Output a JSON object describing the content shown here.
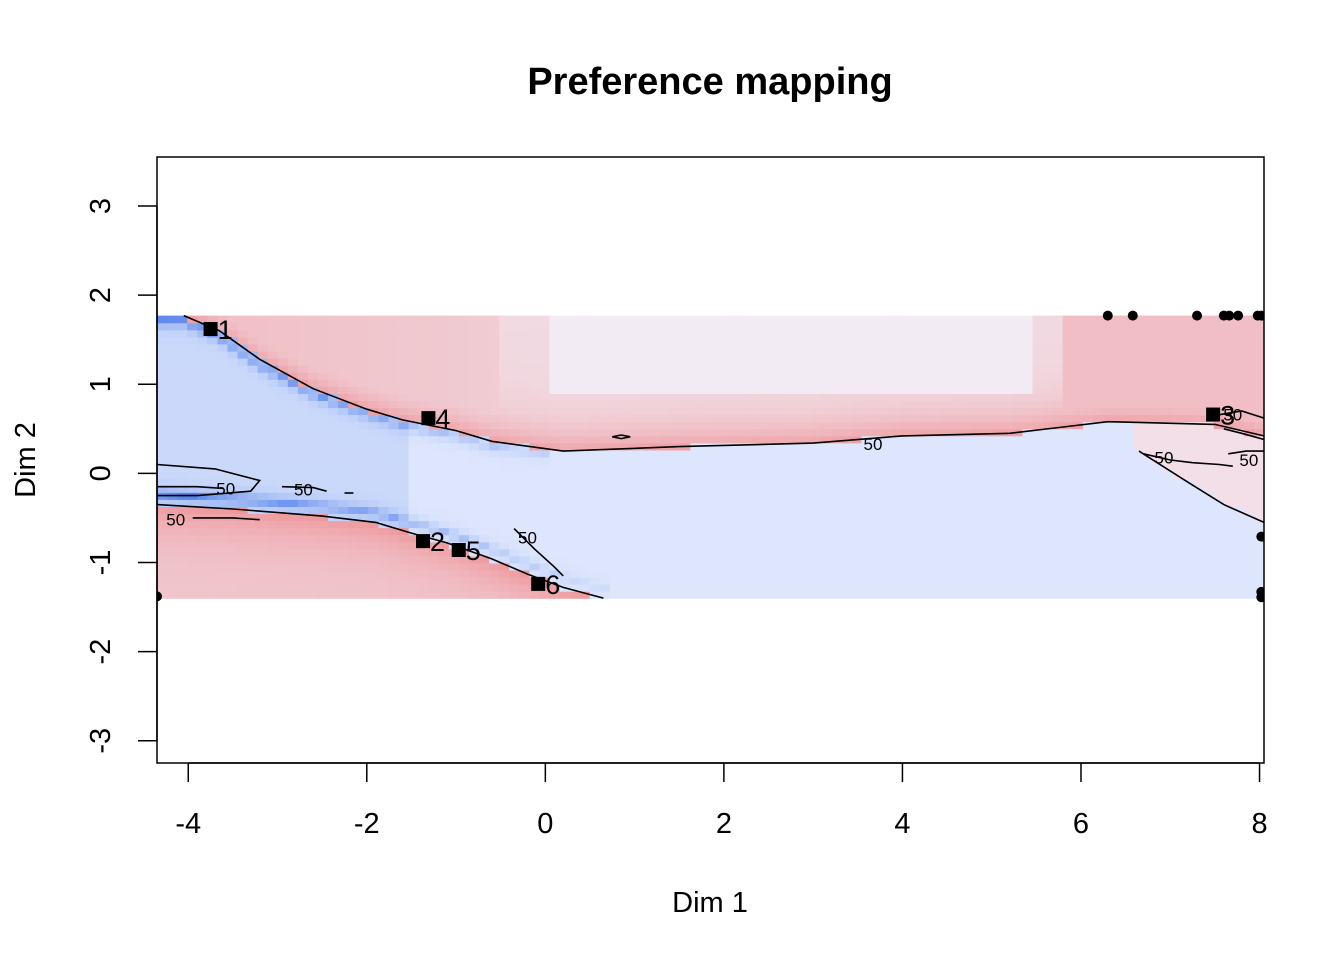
{
  "chart_data": {
    "type": "scatter",
    "title": "Preference mapping",
    "xlabel": "Dim 1",
    "ylabel": "Dim 2",
    "xlim": [
      -4.35,
      8.05
    ],
    "ylim": [
      -3.25,
      3.55
    ],
    "xticks": [
      "-4",
      "-2",
      "0",
      "2",
      "4",
      "6",
      "8"
    ],
    "yticks": [
      "-3",
      "-2",
      "-1",
      "0",
      "1",
      "2",
      "3"
    ],
    "grid": false,
    "legend": "none",
    "heatmap": {
      "x_range": [
        -4.35,
        8.05
      ],
      "y_range": [
        -1.4,
        1.77
      ],
      "scale": "blue (low) to red (high) around 50",
      "low_color": "#3b6fe8",
      "mid_color": "#f3f6ff",
      "high_color": "#e83a3a"
    },
    "contour_level_label": "50",
    "contour_labels": [
      {
        "x": -3.58,
        "y": -0.17
      },
      {
        "x": -2.71,
        "y": -0.18
      },
      {
        "x": -4.14,
        "y": -0.52
      },
      {
        "x": 3.67,
        "y": 0.33
      },
      {
        "x": 7.7,
        "y": 0.66
      },
      {
        "x": 6.93,
        "y": 0.18
      },
      {
        "x": 7.88,
        "y": 0.15
      },
      {
        "x": -0.2,
        "y": -0.72
      }
    ],
    "products": [
      {
        "label": "1",
        "x": -3.75,
        "y": 1.62
      },
      {
        "label": "2",
        "x": -1.37,
        "y": -0.76
      },
      {
        "label": "3",
        "x": 7.48,
        "y": 0.66
      },
      {
        "label": "4",
        "x": -1.31,
        "y": 0.62
      },
      {
        "label": "5",
        "x": -0.97,
        "y": -0.86
      },
      {
        "label": "6",
        "x": -0.08,
        "y": -1.24
      }
    ],
    "consumers": [
      {
        "x": 6.3,
        "y": 1.77
      },
      {
        "x": 6.58,
        "y": 1.77
      },
      {
        "x": 7.3,
        "y": 1.77
      },
      {
        "x": 7.6,
        "y": 1.77
      },
      {
        "x": 7.66,
        "y": 1.77
      },
      {
        "x": 7.76,
        "y": 1.77
      },
      {
        "x": 7.98,
        "y": 1.77
      },
      {
        "x": 8.02,
        "y": 1.77
      },
      {
        "x": 8.02,
        "y": -0.71
      },
      {
        "x": 8.02,
        "y": -1.33
      },
      {
        "x": 8.02,
        "y": -1.39
      },
      {
        "x": -4.35,
        "y": -1.38
      }
    ],
    "contours": [
      [
        [
          -4.05,
          1.77
        ],
        [
          -3.65,
          1.6
        ],
        [
          -3.2,
          1.28
        ],
        [
          -2.6,
          0.95
        ],
        [
          -2.0,
          0.72
        ],
        [
          -1.6,
          0.6
        ],
        [
          -1.0,
          0.48
        ],
        [
          -0.6,
          0.36
        ],
        [
          0.2,
          0.25
        ],
        [
          1.5,
          0.3
        ],
        [
          3.0,
          0.34
        ],
        [
          4.0,
          0.42
        ],
        [
          5.2,
          0.45
        ],
        [
          5.8,
          0.52
        ],
        [
          6.3,
          0.58
        ],
        [
          7.5,
          0.55
        ],
        [
          8.05,
          0.42
        ]
      ],
      [
        [
          -4.35,
          -0.35
        ],
        [
          -3.5,
          -0.4
        ],
        [
          -2.5,
          -0.48
        ],
        [
          -1.9,
          -0.55
        ],
        [
          -1.5,
          -0.67
        ],
        [
          -1.1,
          -0.78
        ],
        [
          -0.6,
          -0.96
        ],
        [
          -0.2,
          -1.13
        ],
        [
          0.2,
          -1.28
        ],
        [
          0.65,
          -1.4
        ]
      ],
      [
        [
          -4.35,
          0.1
        ],
        [
          -3.7,
          0.05
        ],
        [
          -3.2,
          -0.08
        ],
        [
          -3.3,
          -0.2
        ],
        [
          -3.9,
          -0.25
        ],
        [
          -4.35,
          -0.25
        ]
      ],
      [
        [
          -4.35,
          -0.15
        ],
        [
          -3.9,
          -0.15
        ],
        [
          -3.6,
          -0.17
        ]
      ],
      [
        [
          -2.95,
          -0.15
        ],
        [
          -2.6,
          -0.16
        ],
        [
          -2.45,
          -0.2
        ]
      ],
      [
        [
          -2.25,
          -0.22
        ],
        [
          -2.15,
          -0.22
        ]
      ],
      [
        [
          -3.95,
          -0.5
        ],
        [
          -3.5,
          -0.5
        ],
        [
          -3.2,
          -0.52
        ]
      ],
      [
        [
          -0.35,
          -0.62
        ],
        [
          -0.12,
          -0.85
        ],
        [
          0.1,
          -1.05
        ],
        [
          0.2,
          -1.15
        ]
      ],
      [
        [
          6.65,
          0.25
        ],
        [
          7.2,
          -0.1
        ],
        [
          7.6,
          -0.35
        ],
        [
          8.05,
          -0.55
        ]
      ],
      [
        [
          6.7,
          0.22
        ],
        [
          7.0,
          0.15
        ],
        [
          7.25,
          0.12
        ],
        [
          7.55,
          0.1
        ],
        [
          7.7,
          0.08
        ]
      ],
      [
        [
          7.5,
          0.65
        ],
        [
          7.8,
          0.7
        ],
        [
          8.05,
          0.62
        ]
      ],
      [
        [
          7.6,
          0.5
        ],
        [
          7.8,
          0.45
        ],
        [
          8.05,
          0.38
        ]
      ],
      [
        [
          7.65,
          0.22
        ],
        [
          7.85,
          0.25
        ],
        [
          8.05,
          0.25
        ]
      ],
      [
        [
          0.85,
          0.43
        ],
        [
          0.95,
          0.41
        ],
        [
          0.85,
          0.39
        ],
        [
          0.75,
          0.41
        ],
        [
          0.85,
          0.43
        ]
      ]
    ]
  }
}
